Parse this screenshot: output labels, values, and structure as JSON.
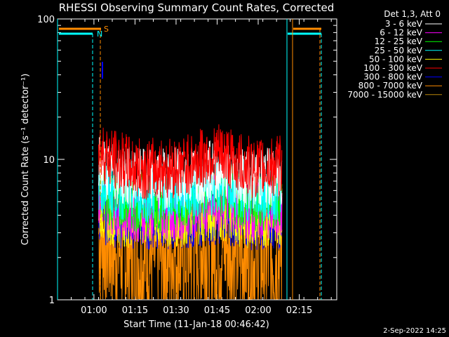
{
  "chart_data": {
    "type": "line",
    "title": "RHESSI Observing Summary Count Rates, Corrected",
    "xlabel": "Start Time (11-Jan-18 00:46:42)",
    "ylabel": "Corrected Count Rate (s⁻¹ detector⁻¹)",
    "y_scale": "log",
    "ylim": [
      1,
      100
    ],
    "xlim_minutes_after_start": [
      0,
      102
    ],
    "x_tick_labels": [
      "01:00",
      "01:15",
      "01:30",
      "01:45",
      "02:00",
      "02:15"
    ],
    "x_tick_minutes_after_start": [
      13.3,
      28.3,
      43.3,
      58.3,
      73.3,
      88.3
    ],
    "y_tick_labels": [
      "1",
      "10",
      "100"
    ],
    "y_tick_values": [
      1,
      10,
      100
    ],
    "legend_title": "Det 1,3, Att 0",
    "legend_placement": "right",
    "series": [
      {
        "name": "3 - 6 keV",
        "color": "#ffffff",
        "values": [
          [
            15,
            9
          ],
          [
            20,
            8
          ],
          [
            30,
            7.2
          ],
          [
            45,
            7.4
          ],
          [
            55,
            8.2
          ],
          [
            60,
            8.6
          ],
          [
            65,
            7.8
          ],
          [
            72,
            7.2
          ],
          [
            82,
            7.5
          ]
        ]
      },
      {
        "name": "6 - 12 keV",
        "color": "#ff00ff",
        "values": [
          [
            15,
            5.5
          ],
          [
            20,
            4.8
          ],
          [
            30,
            4.2
          ],
          [
            45,
            4.4
          ],
          [
            55,
            4.8
          ],
          [
            60,
            5
          ],
          [
            65,
            4.6
          ],
          [
            72,
            4.2
          ],
          [
            82,
            4.4
          ]
        ]
      },
      {
        "name": "12 - 25 keV",
        "color": "#00ff00",
        "values": [
          [
            15,
            6
          ],
          [
            20,
            5.2
          ],
          [
            30,
            5
          ],
          [
            45,
            5.2
          ],
          [
            55,
            5.8
          ],
          [
            60,
            6
          ],
          [
            65,
            5.5
          ],
          [
            72,
            5
          ],
          [
            82,
            5.3
          ]
        ]
      },
      {
        "name": "25 - 50 keV",
        "color": "#00ffff",
        "values": [
          [
            15,
            7
          ],
          [
            20,
            6.2
          ],
          [
            30,
            5.8
          ],
          [
            45,
            6
          ],
          [
            55,
            6.5
          ],
          [
            60,
            6.8
          ],
          [
            65,
            6.2
          ],
          [
            72,
            5.9
          ],
          [
            82,
            6.1
          ]
        ]
      },
      {
        "name": "50 - 100 keV",
        "color": "#ffff00",
        "values": [
          [
            15,
            4.5
          ],
          [
            20,
            4
          ],
          [
            30,
            3.8
          ],
          [
            45,
            3.9
          ],
          [
            55,
            4.2
          ],
          [
            60,
            4.3
          ],
          [
            65,
            4
          ],
          [
            72,
            3.8
          ],
          [
            82,
            4
          ]
        ]
      },
      {
        "name": "100 - 300 keV",
        "color": "#ff0000",
        "values": [
          [
            15,
            12
          ],
          [
            20,
            10
          ],
          [
            30,
            8.5
          ],
          [
            45,
            8.8
          ],
          [
            55,
            10.5
          ],
          [
            60,
            11
          ],
          [
            65,
            9.5
          ],
          [
            72,
            8.6
          ],
          [
            82,
            9
          ]
        ]
      },
      {
        "name": "300 - 800 keV",
        "color": "#0000ff",
        "values": [
          [
            15,
            4.2
          ],
          [
            20,
            3.9
          ],
          [
            30,
            3.7
          ],
          [
            45,
            3.8
          ],
          [
            55,
            4
          ],
          [
            60,
            4.1
          ],
          [
            65,
            3.9
          ],
          [
            72,
            3.7
          ],
          [
            82,
            3.8
          ]
        ]
      },
      {
        "name": "800 - 7000 keV",
        "color": "#ff8c00",
        "values": [
          [
            15,
            3
          ],
          [
            20,
            2.5
          ],
          [
            30,
            2
          ],
          [
            45,
            2.3
          ],
          [
            55,
            2.5
          ],
          [
            60,
            2.6
          ],
          [
            65,
            2.4
          ],
          [
            72,
            2
          ],
          [
            82,
            2.2
          ]
        ]
      },
      {
        "name": "7000 - 15000 keV",
        "color": "#b8860b",
        "values": []
      }
    ],
    "annotations": [
      {
        "text": "S",
        "color": "#ff8c00"
      },
      {
        "text": "N",
        "color": "#00ffff"
      }
    ],
    "footer_date": "2-Sep-2022 14:25"
  }
}
